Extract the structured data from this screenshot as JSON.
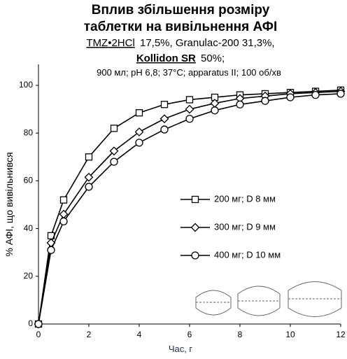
{
  "chart_data": {
    "type": "line",
    "title": [
      "Вплив збільшення розміру",
      "таблетки на вивільнення АФІ"
    ],
    "subtitle": [
      "TMZ•2HCl",
      "17,5%, Granulac-200 31,3%,",
      "Kollidon SR",
      "50%;"
    ],
    "conditions": "900 мл; pH 6,8; 37°C; apparatus II; 100 об/хв",
    "x_label": "Час, г",
    "y_label": "% АФІ, що вивільнився",
    "x": [
      0,
      0.5,
      1,
      2,
      3,
      4,
      5,
      6,
      7,
      8,
      9,
      10,
      11,
      12
    ],
    "series": [
      {
        "name": "200 мг; D 8 мм",
        "color": "#000000",
        "marker": "square",
        "values": [
          0,
          37,
          52,
          70,
          82,
          88.5,
          92,
          94,
          95,
          96,
          96.5,
          97,
          97.5,
          98
        ]
      },
      {
        "name": "300 мг; D 9 мм",
        "color": "#000000",
        "marker": "diamond",
        "values": [
          0,
          34,
          46,
          61.5,
          72.5,
          80.5,
          86,
          90,
          92.5,
          94.5,
          95.5,
          96.5,
          97,
          97.5
        ]
      },
      {
        "name": "400 мг; D 10 мм",
        "color": "#000000",
        "marker": "circle",
        "values": [
          0,
          31,
          43,
          57.5,
          68,
          76,
          81.5,
          86,
          89.5,
          92,
          93.5,
          95,
          96,
          96.5
        ]
      }
    ],
    "xlim": [
      0,
      12
    ],
    "xticks": [
      0,
      2,
      4,
      6,
      8,
      10,
      12
    ],
    "ylim": [
      0,
      100
    ],
    "yticks": [
      0,
      20,
      40,
      60,
      80,
      100
    ]
  }
}
